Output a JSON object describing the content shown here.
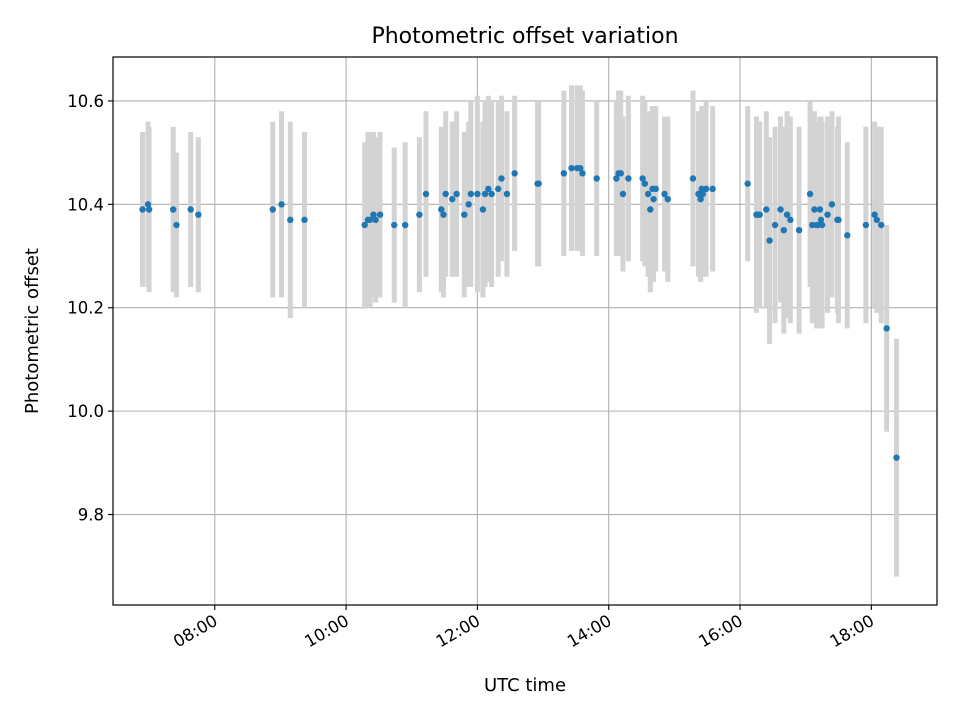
{
  "chart_data": {
    "type": "scatter",
    "title": "Photometric offset variation",
    "xlabel": "UTC time",
    "ylabel": "Photometric offset",
    "xlim": [
      "06:27",
      "19:00"
    ],
    "ylim": [
      9.625,
      10.685
    ],
    "x_ticks": [
      "08:00",
      "10:00",
      "12:00",
      "14:00",
      "16:00",
      "18:00"
    ],
    "y_ticks": [
      "9.8",
      "10.0",
      "10.2",
      "10.4",
      "10.6"
    ],
    "grid": true,
    "colors": {
      "point": "#1f77b4",
      "errorbar": "#d3d3d3",
      "grid": "#b0b0b0"
    },
    "series": [
      {
        "x": [
          "06:54",
          "06:59",
          "07:00",
          "07:22",
          "07:25",
          "07:38",
          "07:45",
          "08:53",
          "09:01",
          "09:09",
          "09:22",
          "10:17",
          "10:20",
          "10:22",
          "10:25",
          "10:27",
          "10:31",
          "10:44",
          "10:54",
          "11:07",
          "11:13",
          "11:27",
          "11:29",
          "11:31",
          "11:37",
          "11:41",
          "11:48",
          "11:52",
          "11:54",
          "12:00",
          "12:05",
          "12:07",
          "12:10",
          "12:13",
          "12:19",
          "12:22",
          "12:27",
          "12:34",
          "12:55",
          "12:56",
          "13:19",
          "13:26",
          "13:31",
          "13:34",
          "13:36",
          "13:49",
          "14:07",
          "14:09",
          "14:11",
          "14:13",
          "14:18",
          "14:31",
          "14:33",
          "14:36",
          "14:38",
          "14:40",
          "14:41",
          "14:43",
          "14:51",
          "14:54",
          "15:17",
          "15:22",
          "15:24",
          "15:25",
          "15:26",
          "15:29",
          "15:35",
          "16:07",
          "16:15",
          "16:17",
          "16:18",
          "16:24",
          "16:27",
          "16:32",
          "16:37",
          "16:40",
          "16:43",
          "16:46",
          "16:54",
          "17:04",
          "17:06",
          "17:08",
          "17:10",
          "17:11",
          "17:13",
          "17:14",
          "17:15",
          "17:20",
          "17:24",
          "17:29",
          "17:30",
          "17:38",
          "17:55",
          "18:03",
          "18:05",
          "18:09",
          "18:14",
          "18:23"
        ],
        "y": [
          10.39,
          10.4,
          10.39,
          10.39,
          10.36,
          10.39,
          10.38,
          10.39,
          10.4,
          10.37,
          10.37,
          10.36,
          10.37,
          10.37,
          10.38,
          10.37,
          10.38,
          10.36,
          10.36,
          10.38,
          10.42,
          10.39,
          10.38,
          10.42,
          10.41,
          10.42,
          10.38,
          10.4,
          10.42,
          10.42,
          10.39,
          10.42,
          10.43,
          10.42,
          10.43,
          10.45,
          10.42,
          10.46,
          10.44,
          10.44,
          10.46,
          10.47,
          10.47,
          10.47,
          10.46,
          10.45,
          10.45,
          10.46,
          10.46,
          10.42,
          10.45,
          10.45,
          10.44,
          10.42,
          10.39,
          10.43,
          10.41,
          10.43,
          10.42,
          10.41,
          10.45,
          10.42,
          10.41,
          10.43,
          10.42,
          10.43,
          10.43,
          10.44,
          10.38,
          10.38,
          10.38,
          10.39,
          10.33,
          10.36,
          10.39,
          10.35,
          10.38,
          10.37,
          10.35,
          10.42,
          10.36,
          10.39,
          10.36,
          10.36,
          10.39,
          10.37,
          10.36,
          10.38,
          10.4,
          10.37,
          10.37,
          10.34,
          10.36,
          10.38,
          10.37,
          10.36,
          10.16,
          9.91
        ],
        "yerr": [
          0.15,
          0.16,
          0.16,
          0.16,
          0.14,
          0.15,
          0.15,
          0.17,
          0.18,
          0.19,
          0.17,
          0.16,
          0.17,
          0.17,
          0.16,
          0.16,
          0.16,
          0.15,
          0.16,
          0.15,
          0.16,
          0.16,
          0.16,
          0.16,
          0.15,
          0.16,
          0.16,
          0.16,
          0.18,
          0.19,
          0.17,
          0.18,
          0.18,
          0.18,
          0.17,
          0.16,
          0.16,
          0.15,
          0.16,
          0.16,
          0.16,
          0.16,
          0.16,
          0.16,
          0.16,
          0.15,
          0.15,
          0.16,
          0.16,
          0.15,
          0.16,
          0.16,
          0.16,
          0.16,
          0.16,
          0.16,
          0.16,
          0.16,
          0.15,
          0.16,
          0.17,
          0.16,
          0.16,
          0.16,
          0.16,
          0.17,
          0.16,
          0.15,
          0.19,
          0.18,
          0.18,
          0.19,
          0.2,
          0.19,
          0.18,
          0.2,
          0.2,
          0.2,
          0.2,
          0.18,
          0.19,
          0.19,
          0.2,
          0.2,
          0.18,
          0.2,
          0.2,
          0.19,
          0.18,
          0.18,
          0.2,
          0.18,
          0.19,
          0.18,
          0.18,
          0.19,
          0.2,
          0.23
        ]
      }
    ]
  }
}
